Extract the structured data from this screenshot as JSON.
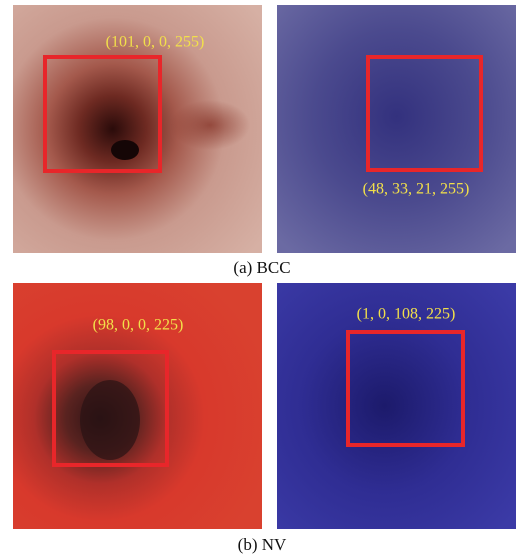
{
  "panels": [
    {
      "left_label": "(101, 0, 0, 255)",
      "right_label": "(48, 33, 21, 255)",
      "caption": "(a) BCC"
    },
    {
      "left_label": "(98, 0, 0, 225)",
      "right_label": "(1, 0, 108, 225)",
      "caption": "(b) NV"
    }
  ]
}
